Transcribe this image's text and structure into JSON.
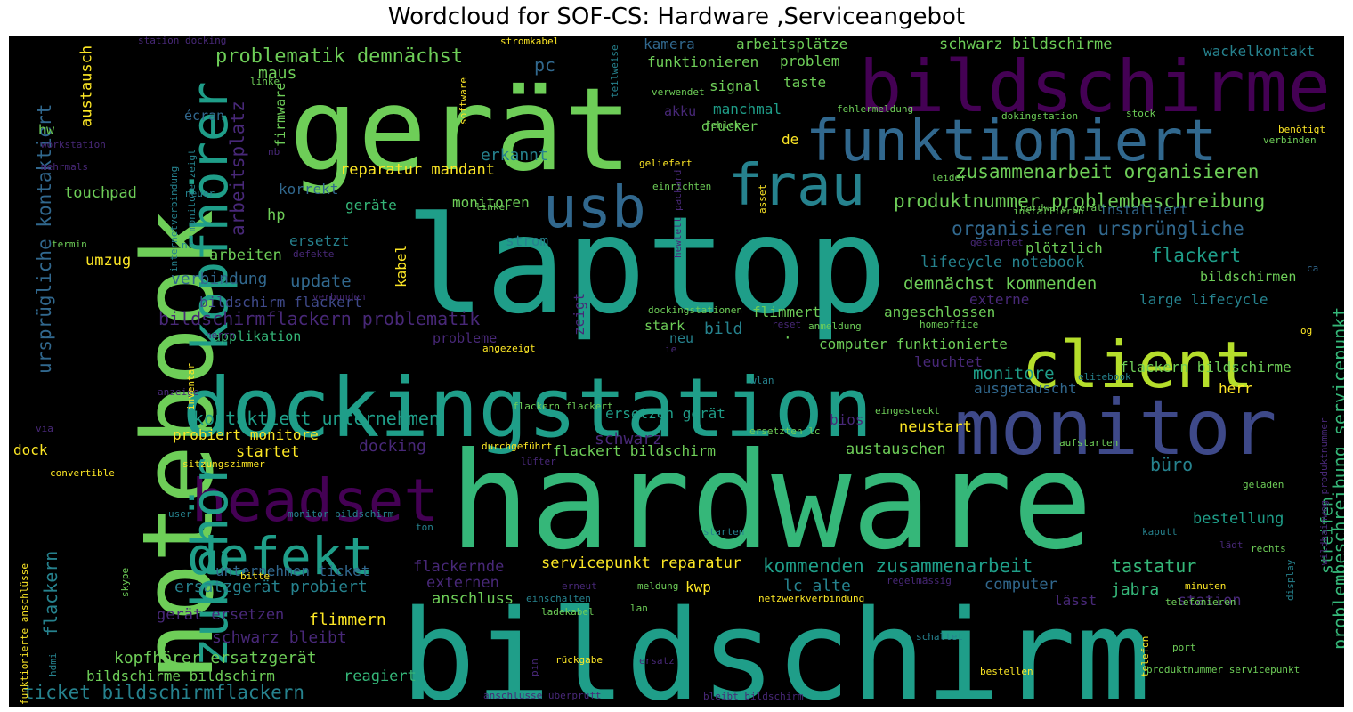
{
  "title": "Wordcloud for SOF-CS: Hardware ,Serviceangebot",
  "palette": {
    "v0": "#440154",
    "v1": "#482878",
    "v2": "#3e4989",
    "v3": "#31688e",
    "v4": "#26828e",
    "v5": "#1f9e89",
    "v6": "#35b779",
    "v7": "#6ece58",
    "v8": "#b5de2b",
    "v9": "#fde725",
    "bg": "#000000"
  },
  "words": [
    {
      "text": "hardware",
      "c": "v6"
    },
    {
      "text": "bildschirm",
      "c": "v5"
    },
    {
      "text": "laptop",
      "c": "v5"
    },
    {
      "text": "gerät",
      "c": "v7"
    },
    {
      "text": "notebook",
      "c": "v7"
    },
    {
      "text": "dockingstation",
      "c": "v5"
    },
    {
      "text": "monitor",
      "c": "v2"
    },
    {
      "text": "bildschirme",
      "c": "v0"
    },
    {
      "text": "client",
      "c": "v8"
    },
    {
      "text": "funktioniert",
      "c": "v3"
    },
    {
      "text": "frau",
      "c": "v4"
    },
    {
      "text": "usb",
      "c": "v3"
    },
    {
      "text": "headset",
      "c": "v0"
    },
    {
      "text": "defekt",
      "c": "v5"
    },
    {
      "text": "zubehör",
      "c": "v5"
    },
    {
      "text": "kopfhörer",
      "c": "v5"
    },
    {
      "text": "problematik demnächst",
      "c": "v7"
    },
    {
      "text": "kontaktiert unternehmen",
      "c": "v5"
    },
    {
      "text": "bildschirmflackern problematik",
      "c": "v1"
    },
    {
      "text": "zusammenarbeit organisieren",
      "c": "v7"
    },
    {
      "text": "produktnummer problembeschreibung",
      "c": "v7"
    },
    {
      "text": "organisieren ursprüngliche",
      "c": "v3"
    },
    {
      "text": "kommenden zusammenarbeit",
      "c": "v5"
    },
    {
      "text": "ticket bildschirmflackern",
      "c": "v4"
    },
    {
      "text": "ursprügliche kontaktiert",
      "c": "v3"
    },
    {
      "text": "arbeitsplatz",
      "c": "v1"
    },
    {
      "text": "problembeschreibung servicepunkt",
      "c": "v6"
    },
    {
      "text": "demnächst kommenden",
      "c": "v7"
    },
    {
      "text": "schwarz bildschirme",
      "c": "v7"
    },
    {
      "text": "reparatur mandant",
      "c": "v9"
    },
    {
      "text": "computer funktionierte",
      "c": "v7"
    },
    {
      "text": "flackern bildschirme",
      "c": "v7"
    },
    {
      "text": "flackert bildschirm",
      "c": "v7"
    },
    {
      "text": "ersatzgerät probiert",
      "c": "v4"
    },
    {
      "text": "servicepunkt reparatur",
      "c": "v9"
    },
    {
      "text": "kopfhörer ersatzgerät",
      "c": "v7"
    },
    {
      "text": "bildschirme bildschirm",
      "c": "v7"
    },
    {
      "text": "schwarz bleibt",
      "c": "v1"
    },
    {
      "text": "gerät ersetzen",
      "c": "v1"
    },
    {
      "text": "unternehmen ticket",
      "c": "v3"
    },
    {
      "text": "ersetzen gerät",
      "c": "v5"
    },
    {
      "text": "probiert monitore",
      "c": "v9"
    },
    {
      "text": "lifecycle notebook",
      "c": "v4"
    },
    {
      "text": "large lifecycle",
      "c": "v4"
    },
    {
      "text": "bildschirm flackert",
      "c": "v2"
    },
    {
      "text": "flackert",
      "c": "v5"
    },
    {
      "text": "monitore",
      "c": "v5"
    },
    {
      "text": "ausgetauscht",
      "c": "v3"
    },
    {
      "text": "austauschen",
      "c": "v7"
    },
    {
      "text": "neustart",
      "c": "v9"
    },
    {
      "text": "streifen",
      "c": "v6"
    },
    {
      "text": "büro",
      "c": "v4"
    },
    {
      "text": "bestellung",
      "c": "v5"
    },
    {
      "text": "tastatur",
      "c": "v6"
    },
    {
      "text": "jabra",
      "c": "v6"
    },
    {
      "text": "lässt",
      "c": "v1"
    },
    {
      "text": "computer",
      "c": "v3"
    },
    {
      "text": "station",
      "c": "v1"
    },
    {
      "text": "flackern",
      "c": "v4"
    },
    {
      "text": "flackernde",
      "c": "v1"
    },
    {
      "text": "externen",
      "c": "v1"
    },
    {
      "text": "anschluss",
      "c": "v7"
    },
    {
      "text": "kwp",
      "c": "v9"
    },
    {
      "text": "lc alte",
      "c": "v4"
    },
    {
      "text": "flimmern",
      "c": "v9"
    },
    {
      "text": "reagiert",
      "c": "v6"
    },
    {
      "text": "update",
      "c": "v3"
    },
    {
      "text": "verbindung",
      "c": "v3"
    },
    {
      "text": "arbeiten",
      "c": "v7"
    },
    {
      "text": "umzug",
      "c": "v9"
    },
    {
      "text": "touchpad",
      "c": "v7"
    },
    {
      "text": "austausch",
      "c": "v9"
    },
    {
      "text": "maus",
      "c": "v7"
    },
    {
      "text": "pc",
      "c": "v3"
    },
    {
      "text": "erkannt",
      "c": "v4"
    },
    {
      "text": "monitoren",
      "c": "v7"
    },
    {
      "text": "geräte",
      "c": "v6"
    },
    {
      "text": "korrekt",
      "c": "v3"
    },
    {
      "text": "hp",
      "c": "v7"
    },
    {
      "text": "ersetzt",
      "c": "v4"
    },
    {
      "text": "strom",
      "c": "v4"
    },
    {
      "text": "kabel",
      "c": "v9"
    },
    {
      "text": "zeigt",
      "c": "v1"
    },
    {
      "text": "probleme",
      "c": "v1"
    },
    {
      "text": "applikation",
      "c": "v6"
    },
    {
      "text": "docking",
      "c": "v1"
    },
    {
      "text": "schwarz",
      "c": "v1"
    },
    {
      "text": "startet",
      "c": "v9"
    },
    {
      "text": "bios",
      "c": "v1"
    },
    {
      "text": "dock",
      "c": "v9"
    },
    {
      "text": "stark",
      "c": "v7"
    },
    {
      "text": "neu",
      "c": "v4"
    },
    {
      "text": "bild",
      "c": "v4"
    },
    {
      "text": "flimmert",
      "c": "v7"
    },
    {
      "text": "angeschlossen",
      "c": "v7"
    },
    {
      "text": "leuchtet",
      "c": "v1"
    },
    {
      "text": "herr",
      "c": "v9"
    },
    {
      "text": "externe",
      "c": "v1"
    },
    {
      "text": "plötzlich",
      "c": "v7"
    },
    {
      "text": "installiert",
      "c": "v3"
    },
    {
      "text": "arbeitsplätze",
      "c": "v7"
    },
    {
      "text": "problem",
      "c": "v7"
    },
    {
      "text": "funktionieren",
      "c": "v7"
    },
    {
      "text": "kamera",
      "c": "v3"
    },
    {
      "text": "signal",
      "c": "v7"
    },
    {
      "text": "taste",
      "c": "v7"
    },
    {
      "text": "akku",
      "c": "v1"
    },
    {
      "text": "manchmal",
      "c": "v5"
    },
    {
      "text": "drucker",
      "c": "v7"
    },
    {
      "text": "de",
      "c": "v9"
    },
    {
      "text": "firmware",
      "c": "v7"
    },
    {
      "text": "écran",
      "c": "v3"
    },
    {
      "text": "hw",
      "c": "v7"
    },
    {
      "text": "wackelkontakt",
      "c": "v4"
    },
    {
      "text": "bildschirmen",
      "c": "v7"
    },
    {
      "text": "station docking",
      "c": "v1"
    },
    {
      "text": "stromkabel",
      "c": "v9"
    },
    {
      "text": "teilweise",
      "c": "v4"
    },
    {
      "text": "software",
      "c": "v9"
    },
    {
      "text": "linke",
      "c": "v7"
    },
    {
      "text": "verwendet",
      "c": "v7"
    },
    {
      "text": "fehlermeldung",
      "c": "v7"
    },
    {
      "text": "dokingstation",
      "c": "v7"
    },
    {
      "text": "stock",
      "c": "v7"
    },
    {
      "text": "benötigt",
      "c": "v9"
    },
    {
      "text": "verbinden",
      "c": "v7"
    },
    {
      "text": "fehler",
      "c": "v7"
    },
    {
      "text": "geliefert",
      "c": "v9"
    },
    {
      "text": "einrichten",
      "c": "v7"
    },
    {
      "text": "hewlett packard",
      "c": "v1"
    },
    {
      "text": "asset",
      "c": "v9"
    },
    {
      "text": "leider",
      "c": "v7"
    },
    {
      "text": "hardware gerät",
      "c": "v7"
    },
    {
      "text": "installieren",
      "c": "v7"
    },
    {
      "text": "gestartet",
      "c": "v1"
    },
    {
      "text": "ca",
      "c": "v3"
    },
    {
      "text": "og",
      "c": "v9"
    },
    {
      "text": "workstation",
      "c": "v1"
    },
    {
      "text": "mehrmals",
      "c": "v1"
    },
    {
      "text": "internetverbindung",
      "c": "v4"
    },
    {
      "text": "monitore zeigt",
      "c": "v4"
    },
    {
      "text": "neuer",
      "c": "v4"
    },
    {
      "text": "nr",
      "c": "v4"
    },
    {
      "text": "nb",
      "c": "v1"
    },
    {
      "text": "verbunden",
      "c": "v1"
    },
    {
      "text": "termin",
      "c": "v7"
    },
    {
      "text": "defekte",
      "c": "v1"
    },
    {
      "text": "linker",
      "c": "v7"
    },
    {
      "text": "dockingstationen",
      "c": "v7"
    },
    {
      "text": "herrn",
      "c": "v1"
    },
    {
      "text": "anmeldung",
      "c": "v7"
    },
    {
      "text": "reset",
      "c": "v1"
    },
    {
      "text": "homeoffice",
      "c": "v7"
    },
    {
      "text": "angezeigt",
      "c": "v9"
    },
    {
      "text": "ie",
      "c": "v1"
    },
    {
      "text": "wlan",
      "c": "v4"
    },
    {
      "text": "anzeige",
      "c": "v1"
    },
    {
      "text": "inventar",
      "c": "v9"
    },
    {
      "text": "eingesteckt",
      "c": "v7"
    },
    {
      "text": "elitebook",
      "c": "v4"
    },
    {
      "text": "via",
      "c": "v1"
    },
    {
      "text": "flackern flackert",
      "c": "v7"
    },
    {
      "text": "durchgeführt",
      "c": "v9"
    },
    {
      "text": "ersetzten lc",
      "c": "v7"
    },
    {
      "text": "aufstarten",
      "c": "v7"
    },
    {
      "text": "convertible",
      "c": "v9"
    },
    {
      "text": "sitzungszimmer",
      "c": "v9"
    },
    {
      "text": "lüfter",
      "c": "v1"
    },
    {
      "text": "wildhainweg produktnummer",
      "c": "v1"
    },
    {
      "text": "user",
      "c": "v4"
    },
    {
      "text": "monitor bildschirm",
      "c": "v4"
    },
    {
      "text": "ton",
      "c": "v4"
    },
    {
      "text": "starten",
      "c": "v4"
    },
    {
      "text": "kaputt",
      "c": "v4"
    },
    {
      "text": "geladen",
      "c": "v7"
    },
    {
      "text": "rechts",
      "c": "v7"
    },
    {
      "text": "lädt",
      "c": "v1"
    },
    {
      "text": "skype",
      "c": "v7"
    },
    {
      "text": "funktionierte anschlüsse",
      "c": "v9"
    },
    {
      "text": "bitte",
      "c": "v9"
    },
    {
      "text": "hdmi",
      "c": "v4"
    },
    {
      "text": "erneut",
      "c": "v1"
    },
    {
      "text": "einschalten",
      "c": "v4"
    },
    {
      "text": "meldung",
      "c": "v7"
    },
    {
      "text": "netzwerkverbindung",
      "c": "v9"
    },
    {
      "text": "regelmässig",
      "c": "v1"
    },
    {
      "text": "minuten",
      "c": "v9"
    },
    {
      "text": "display",
      "c": "v4"
    },
    {
      "text": "telefonieren",
      "c": "v7"
    },
    {
      "text": "ladekabel",
      "c": "v7"
    },
    {
      "text": "lan",
      "c": "v7"
    },
    {
      "text": "pin",
      "c": "v1"
    },
    {
      "text": "rückgabe",
      "c": "v9"
    },
    {
      "text": "schaltet",
      "c": "v4"
    },
    {
      "text": "telefon",
      "c": "v9"
    },
    {
      "text": "port",
      "c": "v7"
    },
    {
      "text": "ersatz",
      "c": "v1"
    },
    {
      "text": "anschlüsse überprüft",
      "c": "v1"
    },
    {
      "text": "bleibt bildschirm",
      "c": "v1"
    },
    {
      "text": "bestellen",
      "c": "v9"
    },
    {
      "text": "produktnummer servicepunkt",
      "c": "v7"
    },
    {
      "text": "·",
      "c": "v7"
    }
  ]
}
